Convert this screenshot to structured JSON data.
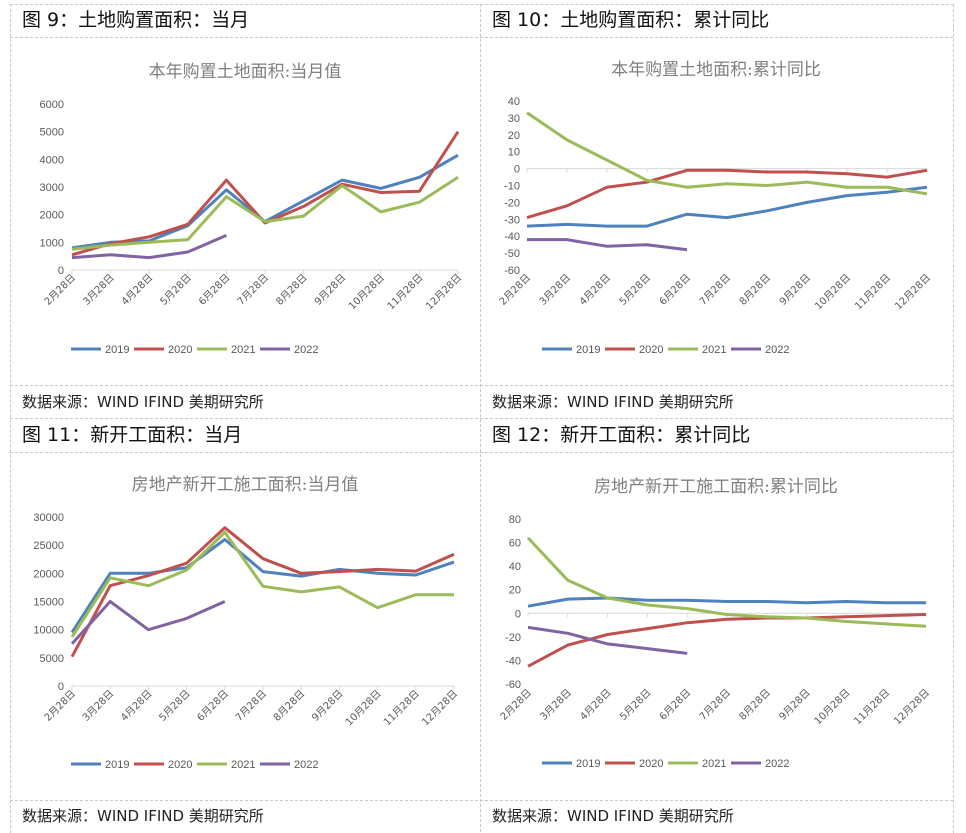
{
  "figures": [
    {
      "title": "图 9：土地购置面积：当月",
      "source": "数据来源：WIND IFIND 美期研究所"
    },
    {
      "title": "图 10：土地购置面积：累计同比",
      "source": "数据来源：WIND IFIND 美期研究所"
    },
    {
      "title": "图 11：新开工面积：当月",
      "source": "数据来源：WIND IFIND 美期研究所"
    },
    {
      "title": "图 12：新开工面积：累计同比",
      "source": "数据来源：WIND IFIND 美期研究所"
    }
  ],
  "colors": {
    "2019": "#4f81bd",
    "2020": "#c0504d",
    "2021": "#9bbb59",
    "2022": "#8064a2"
  },
  "chart_data": [
    {
      "type": "line",
      "title": "本年购置土地面积:当月值",
      "categories": [
        "2月28日",
        "3月28日",
        "4月28日",
        "5月28日",
        "6月28日",
        "7月28日",
        "8月28日",
        "9月28日",
        "10月28日",
        "11月28日",
        "12月28日"
      ],
      "ylim": [
        0,
        6000
      ],
      "yticks": [
        "0",
        "1000",
        "2000",
        "3000",
        "4000",
        "5000",
        "6000"
      ],
      "ytick_values": [
        0,
        1000,
        2000,
        3000,
        4000,
        5000,
        6000
      ],
      "xlabel": "",
      "ylabel": "",
      "grid": false,
      "legend": "bottom",
      "series": [
        {
          "name": "2019",
          "values": [
            800,
            1000,
            1050,
            1600,
            2900,
            1750,
            2500,
            3250,
            2950,
            3350,
            4150
          ]
        },
        {
          "name": "2020",
          "values": [
            550,
            950,
            1200,
            1650,
            3250,
            1700,
            2300,
            3100,
            2800,
            2850,
            5000
          ]
        },
        {
          "name": "2021",
          "values": [
            750,
            900,
            1000,
            1100,
            2650,
            1750,
            1950,
            3050,
            2100,
            2450,
            3350
          ]
        },
        {
          "name": "2022",
          "values": [
            450,
            550,
            450,
            650,
            1250,
            null,
            null,
            null,
            null,
            null,
            null
          ]
        }
      ]
    },
    {
      "type": "line",
      "title": "本年购置土地面积:累计同比",
      "categories": [
        "2月28日",
        "3月28日",
        "4月28日",
        "5月28日",
        "6月28日",
        "7月28日",
        "8月28日",
        "9月28日",
        "10月28日",
        "11月28日",
        "12月28日"
      ],
      "ylim": [
        -60,
        40
      ],
      "yticks": [
        "-60",
        "-50",
        "-40",
        "-30",
        "-20",
        "-10",
        "0",
        "10",
        "20",
        "30",
        "40"
      ],
      "ytick_values": [
        -60,
        -50,
        -40,
        -30,
        -20,
        -10,
        0,
        10,
        20,
        30,
        40
      ],
      "xlabel": "",
      "ylabel": "",
      "grid": false,
      "legend": "bottom",
      "series": [
        {
          "name": "2019",
          "values": [
            -34,
            -33,
            -34,
            -34,
            -27,
            -29,
            -25,
            -20,
            -16,
            -14,
            -11
          ]
        },
        {
          "name": "2020",
          "values": [
            -29,
            -22,
            -11,
            -8,
            -1,
            -1,
            -2,
            -2,
            -3,
            -5,
            -1
          ]
        },
        {
          "name": "2021",
          "values": [
            33,
            17,
            5,
            -7,
            -11,
            -9,
            -10,
            -8,
            -11,
            -11,
            -15
          ]
        },
        {
          "name": "2022",
          "values": [
            -42,
            -42,
            -46,
            -45,
            -48,
            null,
            null,
            null,
            null,
            null,
            null
          ]
        }
      ]
    },
    {
      "type": "line",
      "title": "房地产新开工施工面积:当月值",
      "categories": [
        "2月28日",
        "3月28日",
        "4月28日",
        "5月28日",
        "6月28日",
        "7月28日",
        "8月28日",
        "9月28日",
        "10月28日",
        "11月28日",
        "12月28日"
      ],
      "ylim": [
        0,
        30000
      ],
      "yticks": [
        "0",
        "5000",
        "10000",
        "15000",
        "20000",
        "25000",
        "30000"
      ],
      "ytick_values": [
        0,
        5000,
        10000,
        15000,
        20000,
        25000,
        30000
      ],
      "xlabel": "",
      "ylabel": "",
      "grid": false,
      "legend": "bottom",
      "series": [
        {
          "name": "2019",
          "values": [
            9500,
            20000,
            20000,
            21000,
            26000,
            20300,
            19500,
            20700,
            20000,
            19700,
            22000
          ]
        },
        {
          "name": "2020",
          "values": [
            5200,
            17800,
            19600,
            21800,
            28100,
            22600,
            20000,
            20300,
            20700,
            20400,
            23400
          ]
        },
        {
          "name": "2021",
          "values": [
            8700,
            19200,
            17800,
            20600,
            27300,
            17700,
            16700,
            17600,
            13900,
            16200,
            16200
          ]
        },
        {
          "name": "2022",
          "values": [
            7500,
            15000,
            10000,
            12000,
            15000,
            null,
            null,
            null,
            null,
            null,
            null
          ]
        }
      ]
    },
    {
      "type": "line",
      "title": "房地产新开工施工面积:累计同比",
      "categories": [
        "2月28日",
        "3月28日",
        "4月28日",
        "5月28日",
        "6月28日",
        "7月28日",
        "8月28日",
        "9月28日",
        "10月28日",
        "11月28日",
        "12月28日"
      ],
      "ylim": [
        -60,
        80
      ],
      "yticks": [
        "-60",
        "-40",
        "-20",
        "0",
        "20",
        "40",
        "60",
        "80"
      ],
      "ytick_values": [
        -60,
        -40,
        -20,
        0,
        20,
        40,
        60,
        80
      ],
      "xlabel": "",
      "ylabel": "",
      "grid": false,
      "legend": "bottom",
      "series": [
        {
          "name": "2019",
          "values": [
            6,
            12,
            13,
            11,
            11,
            10,
            10,
            9,
            10,
            9,
            9
          ]
        },
        {
          "name": "2020",
          "values": [
            -45,
            -27,
            -18,
            -13,
            -8,
            -5,
            -4,
            -4,
            -3,
            -2,
            -1
          ]
        },
        {
          "name": "2021",
          "values": [
            64,
            28,
            13,
            7,
            4,
            -1,
            -3,
            -4,
            -7,
            -9,
            -11
          ]
        },
        {
          "name": "2022",
          "values": [
            -12,
            -17,
            -26,
            -30,
            -34,
            null,
            null,
            null,
            null,
            null,
            null
          ]
        }
      ]
    }
  ]
}
